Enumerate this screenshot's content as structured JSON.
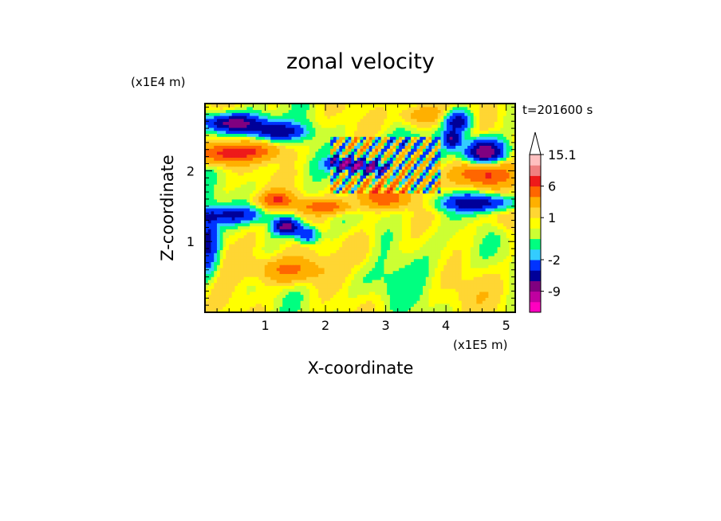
{
  "chart_data": {
    "type": "heatmap",
    "title": "zonal velocity",
    "xlabel": "X-coordinate",
    "ylabel": "Z-coordinate",
    "x_unit": "(x1E5 m)",
    "y_unit": "(x1E4 m)",
    "time_label": "t=201600 s",
    "xlim": [
      0,
      5.15
    ],
    "ylim": [
      0,
      2.95
    ],
    "x_ticks": [
      1,
      2,
      3,
      4,
      5
    ],
    "y_ticks": [
      1,
      2
    ],
    "colorbar": {
      "labels": [
        {
          "value": 15.1,
          "text": "15.1"
        },
        {
          "value": 6,
          "text": "6"
        },
        {
          "value": 1,
          "text": "1"
        },
        {
          "value": -2,
          "text": "-2"
        },
        {
          "value": -9,
          "text": "-9"
        }
      ],
      "levels": [
        {
          "color": "#ff00c0",
          "range": [
            -20,
            -15
          ]
        },
        {
          "color": "#c000a0",
          "range": [
            -15,
            -9
          ]
        },
        {
          "color": "#800080",
          "range": [
            -9,
            -6
          ]
        },
        {
          "color": "#000099",
          "range": [
            -6,
            -4
          ]
        },
        {
          "color": "#0033ff",
          "range": [
            -4,
            -2
          ]
        },
        {
          "color": "#33ccff",
          "range": [
            -2,
            -1
          ]
        },
        {
          "color": "#00ff80",
          "range": [
            -1,
            0
          ]
        },
        {
          "color": "#ccff33",
          "range": [
            0,
            0.5
          ]
        },
        {
          "color": "#ffff00",
          "range": [
            0.5,
            1
          ]
        },
        {
          "color": "#ffd633",
          "range": [
            1,
            2
          ]
        },
        {
          "color": "#ffb000",
          "range": [
            2,
            4
          ]
        },
        {
          "color": "#ff6600",
          "range": [
            4,
            6
          ]
        },
        {
          "color": "#ee1a1a",
          "range": [
            6,
            9
          ]
        },
        {
          "color": "#f08080",
          "range": [
            9,
            12
          ]
        },
        {
          "color": "#ffc0c0",
          "range": [
            12,
            15.1
          ]
        }
      ],
      "extend_max_color": "#ffffff"
    }
  }
}
